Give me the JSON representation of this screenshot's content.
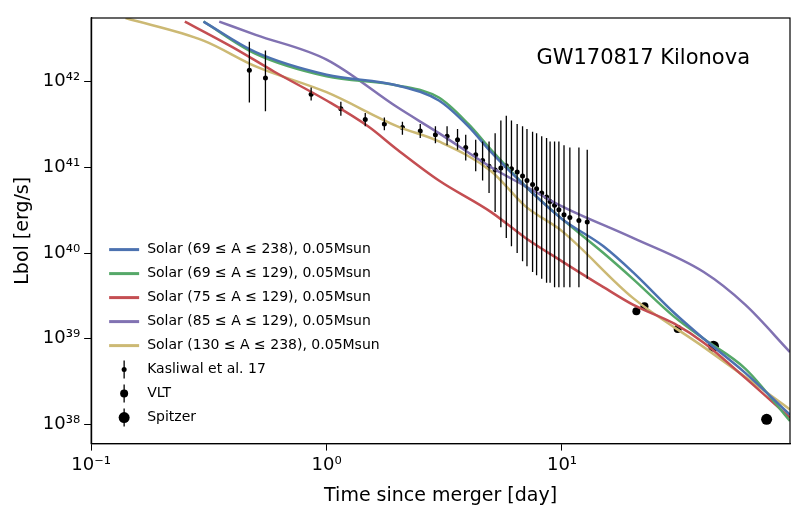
{
  "chart_data": {
    "type": "line",
    "title": "GW170817 Kilonova",
    "x_label": "Time since merger [day]",
    "y_label": "Lbol [erg/s]",
    "log": true,
    "grid": false,
    "legend": "lower left",
    "xlim": [
      0.1,
      93
    ],
    "ylim": [
      6e+37,
      5.5e+42
    ],
    "xticks": [
      {
        "value": 0.1,
        "label": "10⁻¹"
      },
      {
        "value": 1,
        "label": "10⁰"
      },
      {
        "value": 10,
        "label": "10¹"
      }
    ],
    "yticks": [
      {
        "value": 1e+38,
        "label": "10³⁸"
      },
      {
        "value": 1e+39,
        "label": "10³⁹"
      },
      {
        "value": 1e+40,
        "label": "10⁴⁰"
      },
      {
        "value": 1e+41,
        "label": "10⁴¹"
      },
      {
        "value": 1e+42,
        "label": "10⁴²"
      }
    ],
    "series": [
      {
        "name": "Solar (69 ≤ A ≤ 238), 0.05Msun",
        "color": "#4c72b0",
        "type": "line",
        "x": [
          0.3,
          0.5,
          1,
          2,
          3,
          4,
          5,
          7,
          10,
          15,
          20,
          30,
          40,
          60,
          93
        ],
        "values": [
          5e+42,
          2.2e+42,
          1.2e+42,
          9e+41,
          6e+41,
          3e+41,
          1.5e+41,
          6e+40,
          2.5e+40,
          1.2e+40,
          6e+39,
          2e+39,
          1e+39,
          4e+38,
          1.3e+38
        ]
      },
      {
        "name": "Solar (69 ≤ A ≤ 129), 0.05Msun",
        "color": "#55a868",
        "type": "line",
        "x": [
          0.3,
          0.5,
          1,
          2,
          3,
          4,
          5,
          7,
          10,
          15,
          20,
          30,
          40,
          60,
          93
        ],
        "values": [
          5e+42,
          2.1e+42,
          1.15e+42,
          9e+41,
          6.5e+41,
          3.2e+41,
          1.6e+41,
          6e+40,
          2.5e+40,
          1e+40,
          5e+39,
          1.8e+39,
          1e+39,
          4.5e+38,
          1.1e+38
        ]
      },
      {
        "name": "Solar (75 ≤ A ≤ 129), 0.05Msun",
        "color": "#c44e52",
        "type": "line",
        "x": [
          0.25,
          0.4,
          0.6,
          1,
          1.5,
          2,
          3,
          5,
          7,
          10,
          15,
          20,
          30,
          40,
          60,
          93
        ],
        "values": [
          5e+42,
          2.5e+42,
          1.3e+42,
          6e+41,
          3e+41,
          1.6e+41,
          7e+40,
          3e+40,
          1.5e+40,
          8e+39,
          4e+39,
          2.5e+39,
          1.5e+39,
          9e+38,
          3.5e+38,
          1.2e+38
        ]
      },
      {
        "name": "Solar (85 ≤ A ≤ 129), 0.05Msun",
        "color": "#8172b2",
        "type": "line",
        "x": [
          0.35,
          0.5,
          1,
          2,
          3,
          5,
          7,
          10,
          20,
          40,
          60,
          93
        ],
        "values": [
          5e+42,
          3.5e+42,
          1.8e+42,
          5e+41,
          2.5e+41,
          1e+41,
          6e+40,
          3.5e+40,
          1.5e+40,
          6e+39,
          2.5e+39,
          7e+38
        ]
      },
      {
        "name": "Solar (130 ≤ A ≤ 238), 0.05Msun",
        "color": "#ccb974",
        "type": "line",
        "x": [
          0.14,
          0.3,
          0.5,
          1,
          2,
          3,
          5,
          7,
          10,
          20,
          40,
          93
        ],
        "values": [
          5.5e+42,
          3e+42,
          1.5e+42,
          7.5e+41,
          3e+41,
          2e+41,
          9e+40,
          3.5e+40,
          1.8e+40,
          3e+39,
          8e+38,
          1.5e+38
        ]
      },
      {
        "name": "Kasliwal et al. 17",
        "color": "#000000",
        "type": "scatter",
        "marker": "circle",
        "x": [
          0.47,
          0.55,
          0.86,
          1.15,
          1.46,
          1.76,
          2.1,
          2.5,
          2.9,
          3.25,
          3.6,
          3.9,
          4.3,
          4.6,
          4.9,
          5.2,
          5.5,
          5.8,
          6.1,
          6.45,
          6.8,
          7.1,
          7.5,
          7.8,
          8.2,
          8.6,
          8.9,
          9.3,
          9.7,
          10.2,
          10.8,
          11.8,
          12.8
        ],
        "values": [
          1.35e+42,
          1.1e+42,
          7.1e+41,
          4.8e+41,
          3.6e+41,
          3.2e+41,
          2.9e+41,
          2.65e+41,
          2.4e+41,
          2.3e+41,
          2.1e+41,
          1.7e+41,
          1.4e+41,
          1.2e+41,
          1.03e+41,
          9.3e+40,
          9.8e+40,
          1.04e+41,
          9.6e+40,
          8.8e+40,
          7.9e+40,
          7e+40,
          6.3e+40,
          5.6e+40,
          5e+40,
          4.5e+40,
          4e+40,
          3.6e+40,
          3.2e+40,
          2.8e+40,
          2.6e+40,
          2.4e+40,
          2.3e+40
        ],
        "y_low": [
          5.7e+41,
          4.5e+41,
          6e+41,
          4e+41,
          3e+41,
          2.7e+41,
          2.4e+41,
          2.2e+41,
          1.9e+41,
          1.8e+41,
          1.6e+41,
          1.2e+41,
          9e+40,
          7e+40,
          5e+40,
          3e+40,
          2e+40,
          1.5e+40,
          1.2e+40,
          1e+40,
          8e+39,
          7e+39,
          6e+39,
          5.5e+39,
          5e+39,
          4.5e+39,
          4.5e+39,
          4e+39,
          4e+39,
          4e+39,
          4e+39,
          4e+39,
          5e+39
        ],
        "y_high": [
          2.9e+42,
          2.3e+42,
          8.5e+41,
          5.8e+41,
          4.3e+41,
          3.8e+41,
          3.4e+41,
          3.2e+41,
          3e+41,
          3e+41,
          2.8e+41,
          2.4e+41,
          2.1e+41,
          2e+41,
          2e+41,
          2.5e+41,
          3.5e+41,
          4e+41,
          3.5e+41,
          3.2e+41,
          3e+41,
          2.8e+41,
          2.6e+41,
          2.5e+41,
          2.3e+41,
          2.2e+41,
          2e+41,
          2e+41,
          2e+41,
          1.8e+41,
          1.7e+41,
          1.7e+41,
          1.6e+41
        ]
      },
      {
        "name": "VLT",
        "color": "#000000",
        "type": "scatter",
        "marker": "circle",
        "x": [
          20.7,
          22.4,
          31
        ],
        "values": [
          2.1e+39,
          2.4e+39,
          1.3e+39
        ]
      },
      {
        "name": "Spitzer",
        "color": "#000000",
        "type": "scatter",
        "marker": "circle",
        "x": [
          44,
          74
        ],
        "values": [
          8.2e+38,
          1.15e+38
        ]
      }
    ]
  }
}
